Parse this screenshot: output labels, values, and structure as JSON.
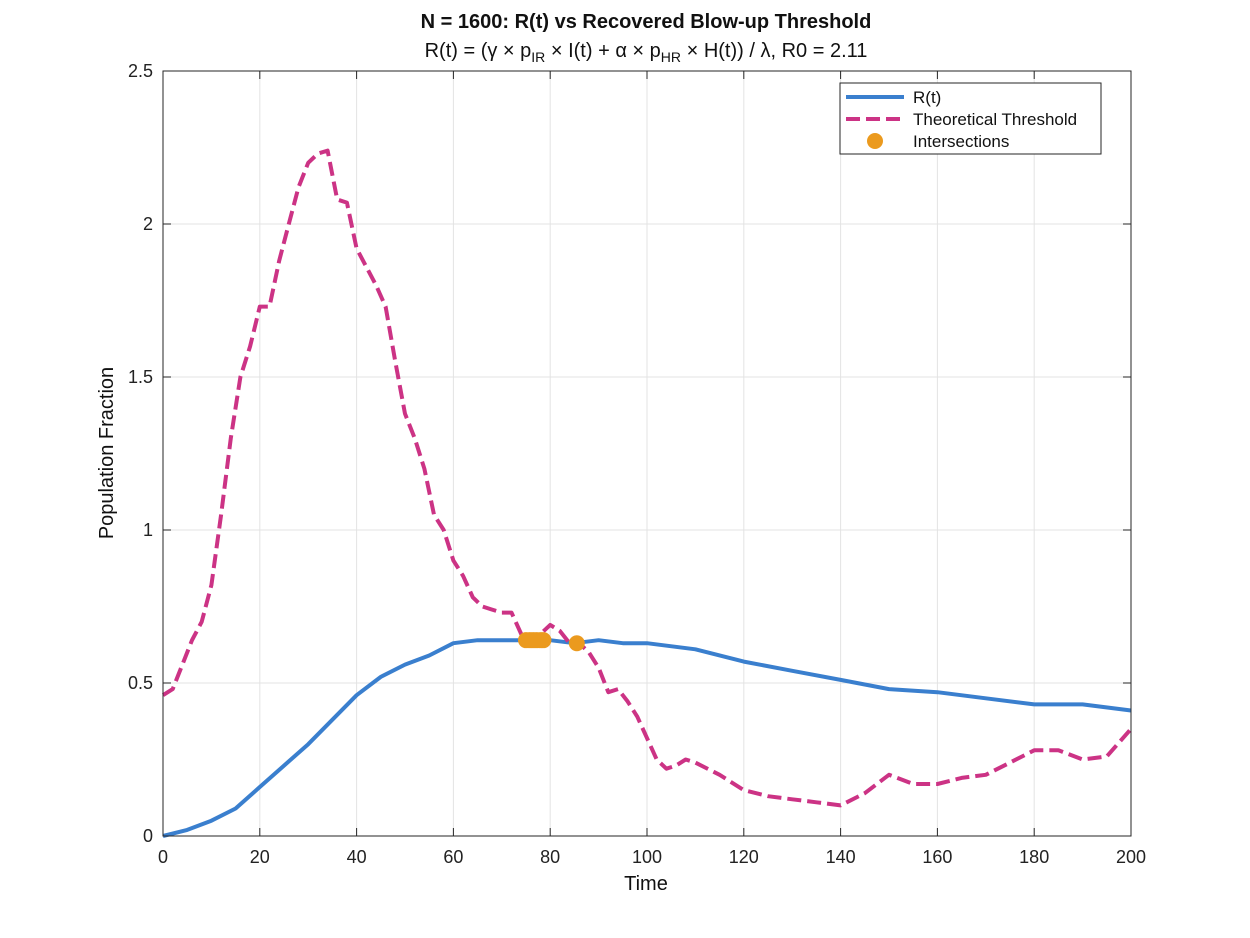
{
  "chart_data": {
    "type": "line",
    "title": "N = 1600: R(t) vs Recovered Blow-up Threshold",
    "subtitle": {
      "segments": [
        {
          "text": "R(t)  =  (γ  ×  p"
        },
        {
          "text": "IR",
          "sub": true
        },
        {
          "text": "  ×  I(t)  +  α  ×  p"
        },
        {
          "text": "HR",
          "sub": true
        },
        {
          "text": "  ×  H(t))  /  λ,  R0  =  2.11"
        }
      ]
    },
    "xlabel": "Time",
    "ylabel": "Population Fraction",
    "xlim": [
      0,
      200
    ],
    "ylim": [
      0,
      2.5
    ],
    "xticks": [
      0,
      20,
      40,
      60,
      80,
      100,
      120,
      140,
      160,
      180,
      200
    ],
    "yticks": [
      0,
      0.5,
      1,
      1.5,
      2,
      2.5
    ],
    "xtick_labels": [
      "0",
      "20",
      "40",
      "60",
      "80",
      "100",
      "120",
      "140",
      "160",
      "180",
      "200"
    ],
    "ytick_labels": [
      "0",
      "0.5",
      "1",
      "1.5",
      "2",
      "2.5"
    ],
    "grid": true,
    "legend_position": "top-right",
    "series": [
      {
        "name": "R(t)",
        "style": "solid",
        "color": "#3a7fce",
        "x": [
          0,
          5,
          10,
          15,
          20,
          25,
          30,
          35,
          40,
          45,
          50,
          55,
          60,
          65,
          70,
          75,
          80,
          85,
          90,
          95,
          100,
          110,
          120,
          130,
          140,
          150,
          160,
          170,
          180,
          190,
          200
        ],
        "y": [
          0,
          0.02,
          0.05,
          0.09,
          0.16,
          0.23,
          0.3,
          0.38,
          0.46,
          0.52,
          0.56,
          0.59,
          0.63,
          0.64,
          0.64,
          0.64,
          0.64,
          0.63,
          0.64,
          0.63,
          0.63,
          0.61,
          0.57,
          0.54,
          0.51,
          0.48,
          0.47,
          0.45,
          0.43,
          0.43,
          0.41
        ]
      },
      {
        "name": "Theoretical Threshold",
        "style": "dashed",
        "color": "#cc3385",
        "x": [
          0,
          2,
          4,
          6,
          8,
          10,
          12,
          14,
          16,
          18,
          20,
          22,
          24,
          26,
          28,
          30,
          32,
          34,
          36,
          38,
          40,
          42,
          44,
          46,
          48,
          50,
          52,
          54,
          56,
          58,
          60,
          62,
          64,
          66,
          68,
          70,
          72,
          74,
          76,
          78,
          80,
          82,
          84,
          86,
          88,
          90,
          92,
          94,
          96,
          98,
          100,
          102,
          104,
          106,
          108,
          110,
          115,
          120,
          125,
          130,
          135,
          140,
          145,
          150,
          155,
          160,
          165,
          170,
          175,
          180,
          185,
          190,
          195,
          200
        ],
        "y": [
          0.46,
          0.48,
          0.56,
          0.64,
          0.7,
          0.82,
          1.05,
          1.3,
          1.5,
          1.6,
          1.73,
          1.73,
          1.88,
          2.0,
          2.12,
          2.2,
          2.23,
          2.24,
          2.08,
          2.07,
          1.92,
          1.86,
          1.8,
          1.73,
          1.55,
          1.38,
          1.3,
          1.2,
          1.05,
          1.0,
          0.9,
          0.85,
          0.78,
          0.75,
          0.74,
          0.73,
          0.73,
          0.66,
          0.64,
          0.66,
          0.69,
          0.67,
          0.63,
          0.63,
          0.6,
          0.55,
          0.47,
          0.48,
          0.44,
          0.39,
          0.32,
          0.25,
          0.22,
          0.23,
          0.25,
          0.24,
          0.2,
          0.15,
          0.13,
          0.12,
          0.11,
          0.1,
          0.14,
          0.2,
          0.17,
          0.17,
          0.19,
          0.2,
          0.24,
          0.28,
          0.28,
          0.25,
          0.26,
          0.35
        ]
      },
      {
        "name": "Intersections",
        "style": "markers",
        "color": "#eb9a1e",
        "x": [
          75.0,
          75.8,
          76.5,
          77.2,
          78.0,
          78.6,
          85.5
        ],
        "y": [
          0.64,
          0.64,
          0.64,
          0.64,
          0.64,
          0.64,
          0.63
        ]
      }
    ]
  }
}
